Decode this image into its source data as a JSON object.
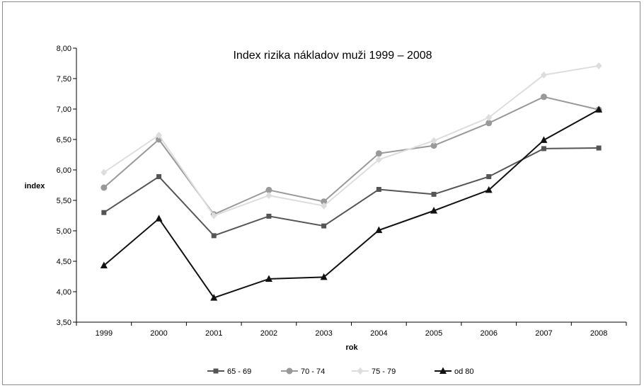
{
  "chart_data": {
    "type": "line",
    "title": "Index rizika nákladov muži 1999 – 2008",
    "xlabel": "rok",
    "ylabel": "index",
    "categories": [
      "1999",
      "2000",
      "2001",
      "2002",
      "2003",
      "2004",
      "2005",
      "2006",
      "2007",
      "2008"
    ],
    "ylim": [
      3.5,
      8.0
    ],
    "yticks": [
      "3,50",
      "4,00",
      "4,50",
      "5,00",
      "5,50",
      "6,00",
      "6,50",
      "7,00",
      "7,50",
      "8,00"
    ],
    "grid": false,
    "legend_position": "bottom",
    "series": [
      {
        "name": "65 - 69",
        "color": "#555555",
        "marker": "square",
        "values": [
          5.3,
          5.89,
          4.92,
          5.24,
          5.08,
          5.68,
          5.6,
          5.89,
          6.35,
          6.36
        ]
      },
      {
        "name": "70 - 74",
        "color": "#999999",
        "marker": "circle",
        "values": [
          5.71,
          6.5,
          5.27,
          5.67,
          5.48,
          6.27,
          6.4,
          6.77,
          7.2,
          6.99
        ]
      },
      {
        "name": "75 - 79",
        "color": "#dddddd",
        "marker": "diamond",
        "values": [
          5.96,
          6.57,
          5.25,
          5.58,
          5.41,
          6.17,
          6.48,
          6.86,
          7.56,
          7.71
        ]
      },
      {
        "name": "od 80",
        "color": "#111111",
        "marker": "triangle",
        "values": [
          4.43,
          5.2,
          3.9,
          4.21,
          4.24,
          5.01,
          5.33,
          5.67,
          6.49,
          6.99
        ]
      }
    ]
  }
}
